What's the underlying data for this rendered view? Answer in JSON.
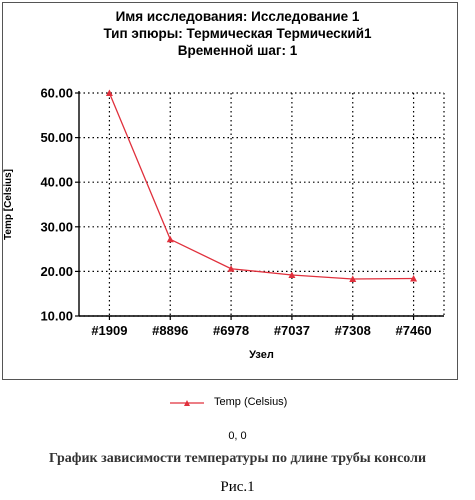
{
  "header": {
    "line1": "Имя исследования: Исследование 1",
    "line2": "Тип эпюры: Термическая Термический1",
    "line3": "Временной шаг: 1"
  },
  "chart_data": {
    "type": "line",
    "categories": [
      "#1909",
      "#8896",
      "#6978",
      "#7037",
      "#7308",
      "#7460"
    ],
    "series": [
      {
        "name": "Temp (Celsius)",
        "values": [
          60.0,
          27.2,
          20.6,
          19.2,
          18.3,
          18.4
        ],
        "color": "#e0303c",
        "marker": "triangle"
      }
    ],
    "xlabel": "Узел",
    "ylabel": "Temp [Celsius]",
    "ylim": [
      10,
      60
    ],
    "yticks": [
      "10.00",
      "20.00",
      "30.00",
      "40.00",
      "50.00",
      "60.00"
    ],
    "grid": true,
    "legend": "bottom"
  },
  "footer": {
    "coords": "0, 0",
    "caption": "График зависимости температуры по длине трубы консоли",
    "figure": "Рис.1"
  }
}
